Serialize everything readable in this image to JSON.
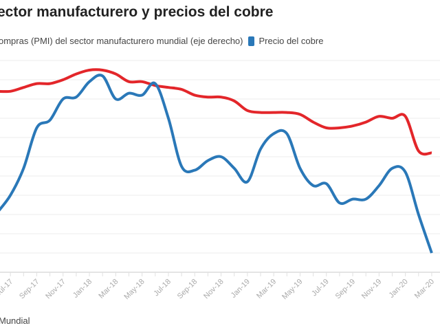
{
  "chart_data": {
    "type": "line",
    "title": "ector manufacturero y precios del cobre",
    "xlabel": "",
    "ylabel": "",
    "ylim": [
      0,
      110
    ],
    "grid": true,
    "legend_position": "top-left",
    "categories": [
      "Jun-17",
      "Jul-17",
      "Aug-17",
      "Sep-17",
      "Oct-17",
      "Nov-17",
      "Dec-17",
      "Jan-18",
      "Feb-18",
      "Mar-18",
      "Apr-18",
      "May-18",
      "Jun-18",
      "Jul-18",
      "Aug-18",
      "Sep-18",
      "Oct-18",
      "Nov-18",
      "Dec-18",
      "Jan-19",
      "Feb-19",
      "Mar-19",
      "Apr-19",
      "May-19",
      "Jun-19",
      "Jul-19",
      "Aug-19",
      "Sep-19",
      "Oct-19",
      "Nov-19",
      "Dec-19",
      "Jan-20",
      "Feb-20",
      "Mar-20"
    ],
    "tick_labels": [
      "Jul-17",
      "Sep-17",
      "Nov-17",
      "Jan-18",
      "Mar-18",
      "May-18",
      "Jul-18",
      "Sep-18",
      "Nov-18",
      "Jan-19",
      "Mar-19",
      "May-19",
      "Jul-19",
      "Sep-19",
      "Nov-19",
      "Jan-20",
      "Mar-20"
    ],
    "series": [
      {
        "name": "ompras (PMI) del sector manufacturero mundial (eje derecho)",
        "color": "#e3262a",
        "values": [
          94,
          94,
          96,
          98,
          98,
          100,
          103,
          105,
          105,
          103,
          99,
          99,
          97,
          96,
          95,
          92,
          91,
          91,
          89,
          84,
          83,
          83,
          83,
          82,
          78,
          75,
          75,
          76,
          78,
          81,
          80,
          81,
          63,
          62
        ]
      },
      {
        "name": "Precio del cobre",
        "color": "#2a78b8",
        "values": [
          31,
          40,
          54,
          75,
          79,
          90,
          91,
          99,
          102,
          90,
          93,
          92,
          98,
          80,
          55,
          53,
          58,
          60,
          54,
          47,
          64,
          72,
          72,
          54,
          45,
          46,
          36,
          38,
          38,
          45,
          54,
          52,
          30,
          10
        ]
      }
    ]
  },
  "footer": "Mundial"
}
